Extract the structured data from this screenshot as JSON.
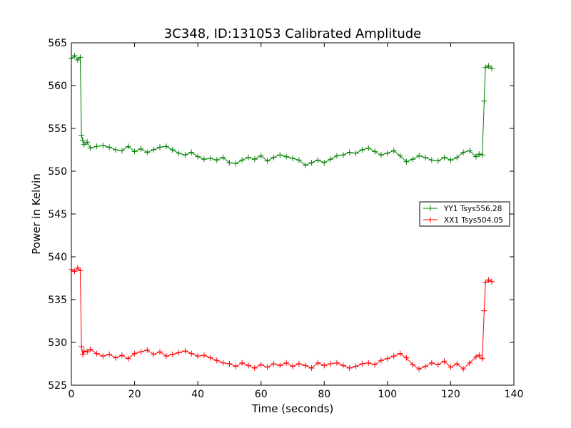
{
  "chart_data": {
    "type": "line",
    "title": "3C348, ID:131053 Calibrated Amplitude",
    "xlabel": "Time (seconds)",
    "ylabel": "Power in Kelvin",
    "xlim": [
      0,
      140
    ],
    "ylim": [
      525,
      565
    ],
    "xticks": [
      0,
      20,
      40,
      60,
      80,
      100,
      120,
      140
    ],
    "yticks": [
      525,
      530,
      535,
      540,
      545,
      550,
      555,
      560,
      565
    ],
    "grid": false,
    "legend_position": "center-right",
    "marker": "+",
    "series": [
      {
        "name": "YY1 Tsys556.28",
        "color": "#008000",
        "x": [
          0,
          1,
          2,
          2.8,
          3.2,
          3.6,
          4,
          5,
          6,
          8,
          10,
          12,
          14,
          16,
          18,
          20,
          22,
          24,
          26,
          28,
          30,
          32,
          34,
          36,
          38,
          40,
          42,
          44,
          46,
          48,
          50,
          52,
          54,
          56,
          58,
          60,
          62,
          64,
          66,
          68,
          70,
          72,
          74,
          76,
          78,
          80,
          82,
          84,
          86,
          88,
          90,
          92,
          94,
          96,
          98,
          100,
          102,
          104,
          106,
          108,
          110,
          112,
          114,
          116,
          118,
          120,
          122,
          124,
          126,
          128,
          129,
          130,
          130.6,
          131,
          132,
          133
        ],
        "y": [
          563.2,
          563.5,
          563.0,
          563.3,
          554.2,
          553.6,
          553.1,
          553.4,
          552.7,
          552.9,
          553.0,
          552.8,
          552.5,
          552.4,
          552.9,
          552.3,
          552.6,
          552.2,
          552.5,
          552.8,
          552.9,
          552.5,
          552.1,
          551.9,
          552.2,
          551.7,
          551.4,
          551.5,
          551.3,
          551.6,
          551.0,
          550.9,
          551.3,
          551.6,
          551.4,
          551.8,
          551.2,
          551.6,
          551.9,
          551.7,
          551.5,
          551.3,
          550.7,
          551.0,
          551.3,
          551.0,
          551.4,
          551.8,
          551.9,
          552.2,
          552.1,
          552.5,
          552.7,
          552.3,
          551.9,
          552.1,
          552.4,
          551.8,
          551.1,
          551.4,
          551.8,
          551.6,
          551.3,
          551.2,
          551.6,
          551.3,
          551.6,
          552.2,
          552.4,
          551.7,
          552.0,
          551.9,
          558.2,
          562.1,
          562.3,
          562.0
        ]
      },
      {
        "name": "XX1 Tsys504.05",
        "color": "#ff0000",
        "x": [
          0,
          1,
          2,
          2.8,
          3.2,
          3.6,
          4,
          5,
          6,
          8,
          10,
          12,
          14,
          16,
          18,
          20,
          22,
          24,
          26,
          28,
          30,
          32,
          34,
          36,
          38,
          40,
          42,
          44,
          46,
          48,
          50,
          52,
          54,
          56,
          58,
          60,
          62,
          64,
          66,
          68,
          70,
          72,
          74,
          76,
          78,
          80,
          82,
          84,
          86,
          88,
          90,
          92,
          94,
          96,
          98,
          100,
          102,
          104,
          106,
          108,
          110,
          112,
          114,
          116,
          118,
          120,
          122,
          124,
          126,
          128,
          129,
          130,
          130.6,
          131,
          132,
          133
        ],
        "y": [
          538.5,
          538.3,
          538.7,
          538.4,
          529.5,
          528.6,
          529.0,
          528.9,
          529.2,
          528.7,
          528.4,
          528.6,
          528.2,
          528.5,
          528.1,
          528.7,
          528.9,
          529.1,
          528.6,
          528.9,
          528.4,
          528.6,
          528.8,
          529.0,
          528.7,
          528.4,
          528.5,
          528.2,
          527.9,
          527.6,
          527.5,
          527.2,
          527.6,
          527.3,
          527.0,
          527.4,
          527.1,
          527.5,
          527.3,
          527.6,
          527.2,
          527.5,
          527.3,
          527.0,
          527.6,
          527.3,
          527.5,
          527.6,
          527.3,
          527.0,
          527.2,
          527.5,
          527.6,
          527.4,
          527.9,
          528.1,
          528.4,
          528.7,
          528.2,
          527.4,
          526.9,
          527.2,
          527.6,
          527.4,
          527.8,
          527.1,
          527.5,
          526.9,
          527.6,
          528.3,
          528.5,
          528.1,
          533.7,
          537.0,
          537.3,
          537.1
        ]
      }
    ]
  }
}
